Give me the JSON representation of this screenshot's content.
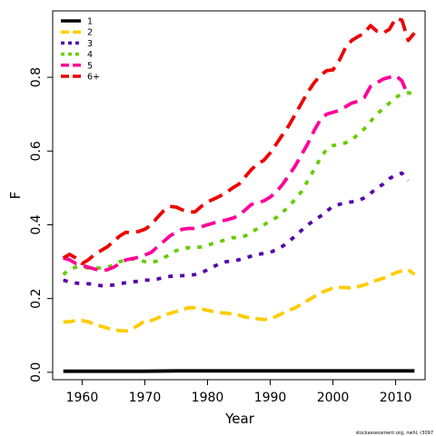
{
  "chart_data": {
    "type": "line",
    "title": "",
    "xlabel": "Year",
    "ylabel": "F",
    "xlim": [
      1955.3,
      2014.7
    ],
    "ylim": [
      -0.02,
      0.98
    ],
    "x_ticks": [
      1960,
      1970,
      1980,
      1990,
      2000,
      2010
    ],
    "y_ticks": [
      0.0,
      0.2,
      0.4,
      0.6,
      0.8
    ],
    "x_tick_labels": [
      "1960",
      "1970",
      "1980",
      "1990",
      "2000",
      "2010"
    ],
    "y_tick_labels": [
      "0.0",
      "0.2",
      "0.4",
      "0.6",
      "0.8"
    ],
    "legend_position": "top-left",
    "grid": false,
    "series": [
      {
        "name": "1",
        "color": "#000000",
        "dash": "solid",
        "x": [
          1957,
          1960,
          1965,
          1970,
          1975,
          1980,
          1985,
          1990,
          1995,
          2000,
          2005,
          2010,
          2013
        ],
        "values": [
          0.003,
          0.003,
          0.003,
          0.003,
          0.004,
          0.004,
          0.004,
          0.004,
          0.004,
          0.004,
          0.004,
          0.004,
          0.004
        ]
      },
      {
        "name": "2",
        "color": "#FFCC00",
        "dash": "dashed",
        "x": [
          1957,
          1958,
          1959,
          1960,
          1961,
          1962,
          1963,
          1964,
          1965,
          1966,
          1967,
          1968,
          1969,
          1970,
          1971,
          1972,
          1973,
          1974,
          1975,
          1976,
          1977,
          1978,
          1979,
          1980,
          1981,
          1982,
          1983,
          1984,
          1985,
          1986,
          1987,
          1988,
          1989,
          1990,
          1991,
          1992,
          1993,
          1994,
          1995,
          1996,
          1997,
          1998,
          1999,
          2000,
          2001,
          2002,
          2003,
          2004,
          2005,
          2006,
          2007,
          2008,
          2009,
          2010,
          2011,
          2012,
          2013
        ],
        "values": [
          0.137,
          0.137,
          0.14,
          0.14,
          0.137,
          0.13,
          0.125,
          0.12,
          0.115,
          0.113,
          0.112,
          0.118,
          0.128,
          0.14,
          0.14,
          0.147,
          0.155,
          0.16,
          0.165,
          0.17,
          0.175,
          0.175,
          0.172,
          0.168,
          0.165,
          0.162,
          0.16,
          0.158,
          0.155,
          0.15,
          0.147,
          0.145,
          0.143,
          0.145,
          0.152,
          0.16,
          0.168,
          0.175,
          0.185,
          0.195,
          0.205,
          0.215,
          0.222,
          0.228,
          0.23,
          0.23,
          0.228,
          0.232,
          0.237,
          0.243,
          0.25,
          0.255,
          0.262,
          0.27,
          0.275,
          0.278,
          0.265
        ]
      },
      {
        "name": "3",
        "color": "#5500AA",
        "dash": "dotted",
        "x": [
          1957,
          1958,
          1959,
          1960,
          1961,
          1962,
          1963,
          1964,
          1965,
          1966,
          1967,
          1968,
          1969,
          1970,
          1971,
          1972,
          1973,
          1974,
          1975,
          1976,
          1977,
          1978,
          1979,
          1980,
          1981,
          1982,
          1983,
          1984,
          1985,
          1986,
          1987,
          1988,
          1989,
          1990,
          1991,
          1992,
          1993,
          1994,
          1995,
          1996,
          1997,
          1998,
          1999,
          2000,
          2001,
          2002,
          2003,
          2004,
          2005,
          2006,
          2007,
          2008,
          2009,
          2010,
          2011,
          2012
        ],
        "values": [
          0.25,
          0.245,
          0.242,
          0.24,
          0.24,
          0.238,
          0.235,
          0.235,
          0.237,
          0.24,
          0.243,
          0.245,
          0.247,
          0.25,
          0.25,
          0.253,
          0.257,
          0.26,
          0.262,
          0.262,
          0.263,
          0.265,
          0.27,
          0.278,
          0.287,
          0.295,
          0.3,
          0.302,
          0.305,
          0.31,
          0.315,
          0.32,
          0.322,
          0.325,
          0.333,
          0.342,
          0.355,
          0.37,
          0.385,
          0.4,
          0.412,
          0.423,
          0.437,
          0.45,
          0.455,
          0.46,
          0.462,
          0.465,
          0.473,
          0.485,
          0.5,
          0.51,
          0.525,
          0.535,
          0.54,
          0.52
        ]
      },
      {
        "name": "4",
        "color": "#66CC00",
        "dash": "dotted",
        "x": [
          1957,
          1958,
          1959,
          1960,
          1961,
          1962,
          1963,
          1964,
          1965,
          1966,
          1967,
          1968,
          1969,
          1970,
          1971,
          1972,
          1973,
          1974,
          1975,
          1976,
          1977,
          1978,
          1979,
          1980,
          1981,
          1982,
          1983,
          1984,
          1985,
          1986,
          1987,
          1988,
          1989,
          1990,
          1991,
          1992,
          1993,
          1994,
          1995,
          1996,
          1997,
          1998,
          1999,
          2000,
          2001,
          2002,
          2003,
          2004,
          2005,
          2006,
          2007,
          2008,
          2009,
          2010,
          2011,
          2012,
          2013
        ],
        "values": [
          0.265,
          0.28,
          0.285,
          0.285,
          0.283,
          0.282,
          0.283,
          0.285,
          0.29,
          0.3,
          0.305,
          0.307,
          0.305,
          0.3,
          0.298,
          0.302,
          0.31,
          0.32,
          0.33,
          0.335,
          0.338,
          0.338,
          0.34,
          0.345,
          0.35,
          0.355,
          0.36,
          0.365,
          0.365,
          0.37,
          0.38,
          0.39,
          0.4,
          0.41,
          0.42,
          0.435,
          0.45,
          0.47,
          0.49,
          0.52,
          0.55,
          0.58,
          0.605,
          0.615,
          0.618,
          0.622,
          0.63,
          0.645,
          0.66,
          0.68,
          0.7,
          0.715,
          0.73,
          0.745,
          0.755,
          0.758,
          0.755
        ]
      },
      {
        "name": "5",
        "color": "#FF0099",
        "dash": "longdash",
        "x": [
          1957,
          1958,
          1959,
          1960,
          1961,
          1962,
          1963,
          1964,
          1965,
          1966,
          1967,
          1968,
          1969,
          1970,
          1971,
          1972,
          1973,
          1974,
          1975,
          1976,
          1977,
          1978,
          1979,
          1980,
          1981,
          1982,
          1983,
          1984,
          1985,
          1986,
          1987,
          1988,
          1989,
          1990,
          1991,
          1992,
          1993,
          1994,
          1995,
          1996,
          1997,
          1998,
          1999,
          2000,
          2001,
          2002,
          2003,
          2004,
          2005,
          2006,
          2007,
          2008,
          2009,
          2010,
          2011,
          2012
        ],
        "values": [
          0.31,
          0.305,
          0.295,
          0.29,
          0.285,
          0.28,
          0.275,
          0.278,
          0.285,
          0.295,
          0.305,
          0.308,
          0.312,
          0.318,
          0.325,
          0.34,
          0.355,
          0.37,
          0.38,
          0.388,
          0.39,
          0.39,
          0.395,
          0.4,
          0.405,
          0.41,
          0.413,
          0.418,
          0.425,
          0.44,
          0.455,
          0.46,
          0.465,
          0.475,
          0.49,
          0.51,
          0.535,
          0.56,
          0.59,
          0.62,
          0.655,
          0.685,
          0.7,
          0.705,
          0.71,
          0.72,
          0.73,
          0.735,
          0.745,
          0.775,
          0.785,
          0.795,
          0.8,
          0.805,
          0.79,
          0.75
        ]
      },
      {
        "name": "6+",
        "color": "#EE0000",
        "dash": "longdash",
        "x": [
          1957,
          1958,
          1959,
          1960,
          1961,
          1962,
          1963,
          1964,
          1965,
          1966,
          1967,
          1968,
          1969,
          1970,
          1971,
          1972,
          1973,
          1974,
          1975,
          1976,
          1977,
          1978,
          1979,
          1980,
          1981,
          1982,
          1983,
          1984,
          1985,
          1986,
          1987,
          1988,
          1989,
          1990,
          1991,
          1992,
          1993,
          1994,
          1995,
          1996,
          1997,
          1998,
          1999,
          2000,
          2001,
          2002,
          2003,
          2004,
          2005,
          2006,
          2007,
          2008,
          2009,
          2010,
          2011,
          2012,
          2013
        ],
        "values": [
          0.31,
          0.32,
          0.31,
          0.295,
          0.305,
          0.32,
          0.33,
          0.34,
          0.355,
          0.37,
          0.38,
          0.378,
          0.382,
          0.388,
          0.4,
          0.42,
          0.438,
          0.45,
          0.448,
          0.44,
          0.435,
          0.435,
          0.45,
          0.462,
          0.47,
          0.478,
          0.488,
          0.5,
          0.51,
          0.53,
          0.55,
          0.565,
          0.575,
          0.595,
          0.62,
          0.645,
          0.67,
          0.7,
          0.73,
          0.76,
          0.785,
          0.805,
          0.818,
          0.82,
          0.845,
          0.88,
          0.9,
          0.91,
          0.92,
          0.94,
          0.925,
          0.92,
          0.93,
          0.96,
          0.955,
          0.9,
          0.92
        ]
      }
    ]
  },
  "watermark": "stockassessment.org, nwhl, r3097"
}
